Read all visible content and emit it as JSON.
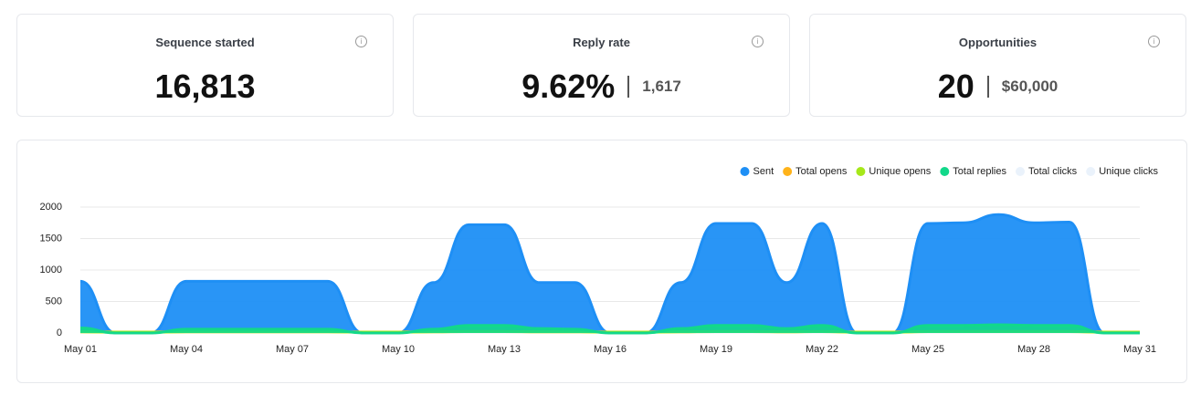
{
  "cards": [
    {
      "title": "Sequence started",
      "value": "16,813"
    },
    {
      "title": "Reply rate",
      "value": "9.62%",
      "secondary": "1,617"
    },
    {
      "title": "Opportunities",
      "value": "20",
      "secondary": "$60,000"
    }
  ],
  "chart_data": {
    "type": "area",
    "categories": [
      "May 01",
      null,
      null,
      "May 04",
      null,
      null,
      "May 07",
      null,
      null,
      "May 10",
      null,
      null,
      "May 13",
      null,
      null,
      "May 16",
      null,
      null,
      "May 19",
      null,
      null,
      "May 22",
      null,
      null,
      "May 25",
      null,
      null,
      "May 28",
      null,
      null,
      "May 31"
    ],
    "series": [
      {
        "name": "Sent",
        "color": "#1e8ff5",
        "values": [
          820,
          0,
          0,
          820,
          820,
          820,
          820,
          820,
          0,
          0,
          800,
          1720,
          1720,
          800,
          800,
          0,
          0,
          800,
          1740,
          1740,
          800,
          1740,
          0,
          0,
          1740,
          1750,
          1880,
          1750,
          1760,
          0,
          0
        ]
      },
      {
        "name": "Total opens",
        "color": "#ffb31a",
        "values": [
          20,
          15,
          15,
          20,
          20,
          20,
          20,
          20,
          15,
          15,
          20,
          25,
          25,
          20,
          20,
          15,
          15,
          20,
          25,
          25,
          20,
          25,
          15,
          15,
          25,
          25,
          25,
          25,
          25,
          15,
          15
        ]
      },
      {
        "name": "Unique opens",
        "color": "#a6e81a",
        "values": [
          18,
          12,
          12,
          18,
          18,
          18,
          18,
          18,
          12,
          12,
          18,
          22,
          22,
          18,
          18,
          12,
          12,
          18,
          22,
          22,
          18,
          22,
          12,
          12,
          22,
          22,
          22,
          22,
          22,
          12,
          12
        ]
      },
      {
        "name": "Total replies",
        "color": "#12d88a",
        "values": [
          80,
          0,
          0,
          60,
          60,
          60,
          60,
          60,
          0,
          0,
          60,
          120,
          120,
          70,
          60,
          0,
          0,
          70,
          120,
          120,
          70,
          120,
          0,
          0,
          120,
          120,
          130,
          120,
          120,
          0,
          0
        ]
      },
      {
        "name": "Total clicks",
        "color": "#eaf2fb",
        "hidden": true
      },
      {
        "name": "Unique clicks",
        "color": "#eaf2fb",
        "hidden": true
      }
    ],
    "ylim": [
      0,
      2000
    ],
    "yticks": [
      0,
      500,
      1000,
      1500,
      2000
    ],
    "grid": true,
    "legend": "top-right"
  }
}
